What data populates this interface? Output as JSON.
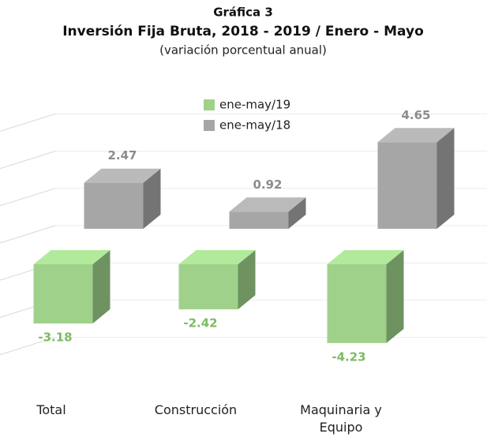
{
  "chart_data": {
    "type": "bar3d",
    "title": "Gráfica 3",
    "subtitle": "Inversión Fija Bruta, 2018 - 2019 / Enero - Mayo",
    "note": "(variación porcentual anual)",
    "categories": [
      "Total",
      "Construcción",
      "Maquinaria y Equipo"
    ],
    "series": [
      {
        "name": "ene-may/19",
        "color": "#9fd18a",
        "values": [
          -3.18,
          -2.42,
          -4.23
        ]
      },
      {
        "name": "ene-may/18",
        "color": "#a6a6a6",
        "values": [
          2.47,
          0.92,
          4.65
        ]
      }
    ],
    "ylim": [
      -6,
      6
    ],
    "yticks": [
      -6,
      -4,
      -2,
      0,
      2,
      4,
      6
    ],
    "grid": true
  }
}
